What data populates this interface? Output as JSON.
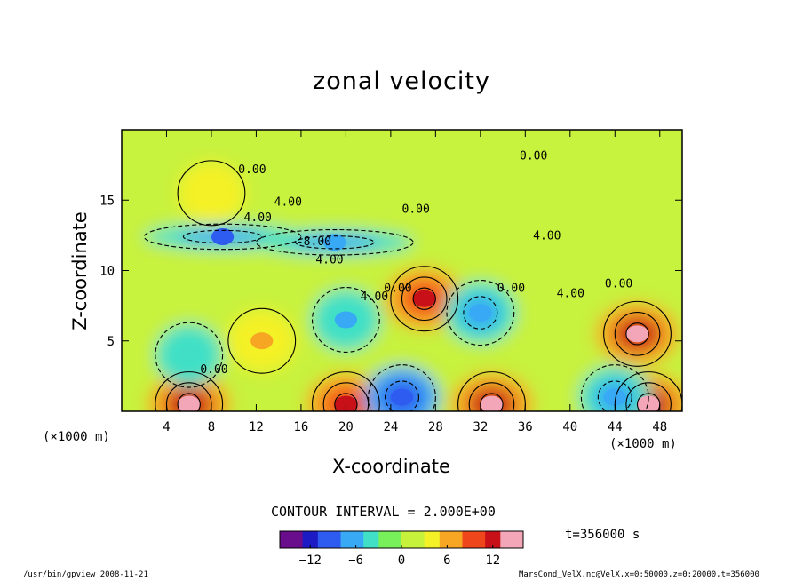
{
  "title": "zonal velocity",
  "footer": {
    "left": "/usr/bin/gpview  2008-11-21",
    "right": "MarsCond_VelX.nc@VelX,x=0:50000,z=0:20000,t=356000"
  },
  "contour_interval": "CONTOUR INTERVAL = 2.000E+00",
  "time_label": "t=356000 s",
  "chart_data": {
    "type": "heatmap",
    "title": "zonal velocity",
    "xlabel": "X-coordinate",
    "ylabel": "Z-coordinate",
    "x_unit_left": "(×1000 m)",
    "x_unit_right": "(×1000 m)",
    "xlim": [
      0,
      50
    ],
    "ylim": [
      0,
      20
    ],
    "x_ticks": [
      4,
      8,
      12,
      16,
      20,
      24,
      28,
      32,
      36,
      40,
      44,
      48
    ],
    "y_ticks": [
      5,
      10,
      15
    ],
    "colorbar": {
      "range": [
        -16,
        16
      ],
      "ticks": [
        -12,
        -6,
        0,
        6,
        12
      ],
      "tick_labels": [
        "−12",
        "−6",
        "0",
        "6",
        "12"
      ],
      "colors": [
        "#6a0d8c",
        "#1c1bc4",
        "#2f5cf0",
        "#37a9f5",
        "#41e0c6",
        "#77f05a",
        "#c7f23c",
        "#f4f127",
        "#f6a623",
        "#f0461c",
        "#c81019",
        "#f2a6b8"
      ]
    },
    "contour_labels": [
      {
        "text": "0.00",
        "x": 10.4,
        "z": 16.9
      },
      {
        "text": "4.00",
        "x": 13.6,
        "z": 14.6
      },
      {
        "text": "4.00",
        "x": 10.9,
        "z": 13.5
      },
      {
        "text": "-8.00",
        "x": 15.6,
        "z": 11.8
      },
      {
        "text": "4.00",
        "x": 17.3,
        "z": 10.5
      },
      {
        "text": "0.00",
        "x": 25.0,
        "z": 14.1
      },
      {
        "text": "0.00",
        "x": 35.5,
        "z": 17.9
      },
      {
        "text": "4.00",
        "x": 36.7,
        "z": 12.2
      },
      {
        "text": "4.00",
        "x": 21.3,
        "z": 7.9
      },
      {
        "text": "0.00",
        "x": 23.4,
        "z": 8.5
      },
      {
        "text": "0.00",
        "x": 33.5,
        "z": 8.5
      },
      {
        "text": "4.00",
        "x": 38.8,
        "z": 8.1
      },
      {
        "text": "0.00",
        "x": 43.1,
        "z": 8.8
      },
      {
        "text": "0.00",
        "x": 7.0,
        "z": 2.7
      }
    ],
    "features": [
      {
        "kind": "max",
        "x": 27,
        "z": 8,
        "value": 12
      },
      {
        "kind": "max",
        "x": 46,
        "z": 5.5,
        "value": 14
      },
      {
        "kind": "max",
        "x": 12.5,
        "z": 5,
        "value": 6
      },
      {
        "kind": "max",
        "x": 6,
        "z": 0.5,
        "value": 14
      },
      {
        "kind": "max",
        "x": 20,
        "z": 0.5,
        "value": 12
      },
      {
        "kind": "max",
        "x": 33,
        "z": 0.5,
        "value": 14
      },
      {
        "kind": "max",
        "x": 47,
        "z": 0.5,
        "value": 14
      },
      {
        "kind": "max",
        "x": 8,
        "z": 15.5,
        "value": 5
      },
      {
        "kind": "min",
        "x": 9,
        "z": 12.4,
        "value": -9
      },
      {
        "kind": "min",
        "x": 19,
        "z": 12.0,
        "value": -8
      },
      {
        "kind": "min",
        "x": 32,
        "z": 7,
        "value": -8
      },
      {
        "kind": "min",
        "x": 20,
        "z": 6.5,
        "value": -6
      },
      {
        "kind": "min",
        "x": 25,
        "z": 1,
        "value": -10
      },
      {
        "kind": "min",
        "x": 44,
        "z": 1,
        "value": -8
      },
      {
        "kind": "min",
        "x": 6,
        "z": 4,
        "value": -5
      }
    ]
  }
}
